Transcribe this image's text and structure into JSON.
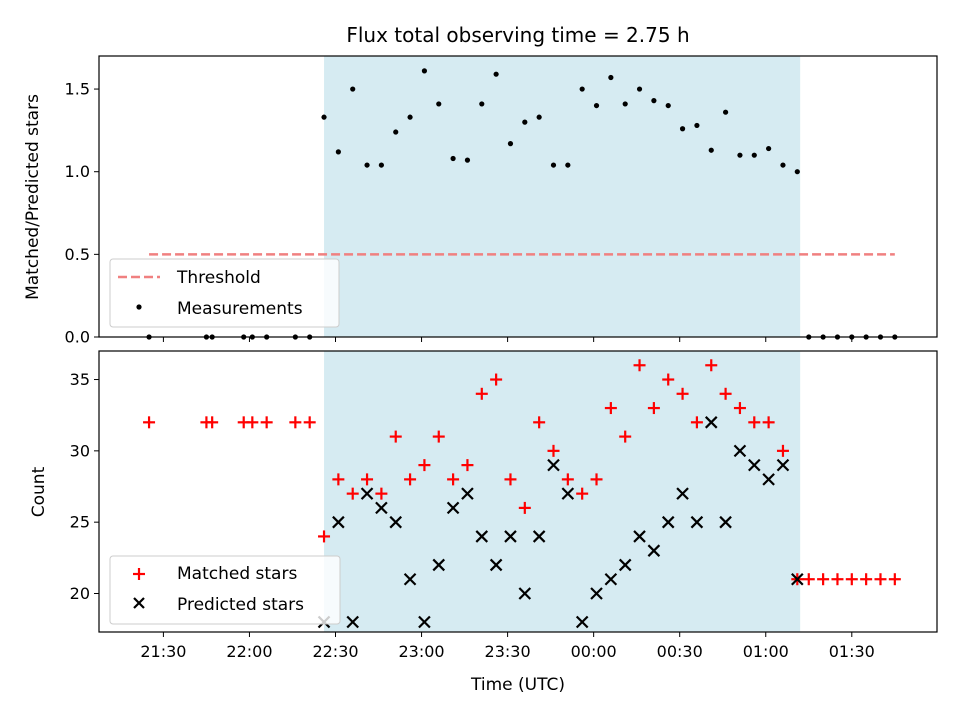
{
  "chart_data": [
    {
      "type": "scatter",
      "title": "Flux total observing time = 2.75 h",
      "xlabel": "",
      "ylabel": "Matched/Predicted stars",
      "ylim": [
        0,
        1.7
      ],
      "yticks": [
        "0.0",
        "0.5",
        "1.0",
        "1.5"
      ],
      "shaded_region": {
        "start": "22:26",
        "end": "01:12",
        "color": "#add8e6"
      },
      "threshold": {
        "name": "Threshold",
        "value": 0.5,
        "start": "21:25",
        "end": "01:45",
        "color": "#f08080"
      },
      "series": [
        {
          "name": "Measurements",
          "color": "#000000",
          "x": [
            "21:25",
            "21:45",
            "21:47",
            "21:58",
            "22:01",
            "22:06",
            "22:16",
            "22:21",
            "22:26",
            "22:31",
            "22:36",
            "22:41",
            "22:46",
            "22:51",
            "22:56",
            "23:01",
            "23:06",
            "23:11",
            "23:16",
            "23:21",
            "23:26",
            "23:31",
            "23:36",
            "23:41",
            "23:46",
            "23:51",
            "23:56",
            "00:01",
            "00:06",
            "00:11",
            "00:16",
            "00:21",
            "00:26",
            "00:31",
            "00:36",
            "00:41",
            "00:46",
            "00:51",
            "00:56",
            "01:01",
            "01:06",
            "01:11",
            "01:15",
            "01:20",
            "01:25",
            "01:30",
            "01:35",
            "01:40",
            "01:45"
          ],
          "values": [
            0,
            0,
            0,
            0,
            0,
            0,
            0,
            0,
            1.33,
            1.12,
            1.5,
            1.04,
            1.04,
            1.24,
            1.33,
            1.61,
            1.41,
            1.08,
            1.07,
            1.41,
            1.59,
            1.17,
            1.3,
            1.33,
            1.04,
            1.04,
            1.5,
            1.4,
            1.57,
            1.41,
            1.5,
            1.43,
            1.4,
            1.26,
            1.28,
            1.13,
            1.36,
            1.1,
            1.1,
            1.14,
            1.04,
            1.0,
            0,
            0,
            0,
            0,
            0,
            0,
            0
          ]
        }
      ]
    },
    {
      "type": "scatter",
      "xlabel": "Time (UTC)",
      "ylabel": "Count",
      "ylim": [
        17.3,
        37
      ],
      "yticks": [
        "20",
        "25",
        "30",
        "35"
      ],
      "xticks": [
        "21:30",
        "22:00",
        "22:30",
        "23:00",
        "23:30",
        "00:00",
        "00:30",
        "01:00",
        "01:30"
      ],
      "series": [
        {
          "name": "Matched stars",
          "marker": "+",
          "color": "#ff0000",
          "x": [
            "21:25",
            "21:45",
            "21:47",
            "21:58",
            "22:01",
            "22:06",
            "22:16",
            "22:21",
            "22:26",
            "22:31",
            "22:36",
            "22:41",
            "22:46",
            "22:51",
            "22:56",
            "23:01",
            "23:06",
            "23:11",
            "23:16",
            "23:21",
            "23:26",
            "23:31",
            "23:36",
            "23:41",
            "23:46",
            "23:51",
            "23:56",
            "00:01",
            "00:06",
            "00:11",
            "00:16",
            "00:21",
            "00:26",
            "00:31",
            "00:36",
            "00:41",
            "00:46",
            "00:51",
            "00:56",
            "01:01",
            "01:06",
            "01:11",
            "01:15",
            "01:20",
            "01:25",
            "01:30",
            "01:35",
            "01:40",
            "01:45"
          ],
          "values": [
            32,
            32,
            32,
            32,
            32,
            32,
            32,
            32,
            24,
            28,
            27,
            28,
            27,
            31,
            28,
            29,
            31,
            28,
            29,
            34,
            35,
            28,
            26,
            32,
            30,
            28,
            27,
            28,
            33,
            31,
            36,
            33,
            35,
            34,
            32,
            36,
            34,
            33,
            32,
            32,
            30,
            21,
            21,
            21,
            21,
            21,
            21,
            21,
            21
          ]
        },
        {
          "name": "Predicted stars",
          "marker": "x",
          "color": "#000000",
          "x": [
            "22:26",
            "22:31",
            "22:36",
            "22:41",
            "22:46",
            "22:51",
            "22:56",
            "23:01",
            "23:06",
            "23:11",
            "23:16",
            "23:21",
            "23:26",
            "23:31",
            "23:36",
            "23:41",
            "23:46",
            "23:51",
            "23:56",
            "00:01",
            "00:06",
            "00:11",
            "00:16",
            "00:21",
            "00:26",
            "00:31",
            "00:36",
            "00:41",
            "00:46",
            "00:51",
            "00:56",
            "01:01",
            "01:06",
            "01:11"
          ],
          "values": [
            18,
            25,
            18,
            27,
            26,
            25,
            21,
            18,
            22,
            26,
            27,
            24,
            22,
            24,
            20,
            24,
            29,
            27,
            18,
            20,
            21,
            22,
            24,
            23,
            25,
            27,
            25,
            32,
            25,
            30,
            29,
            28,
            29,
            21
          ]
        }
      ]
    }
  ]
}
